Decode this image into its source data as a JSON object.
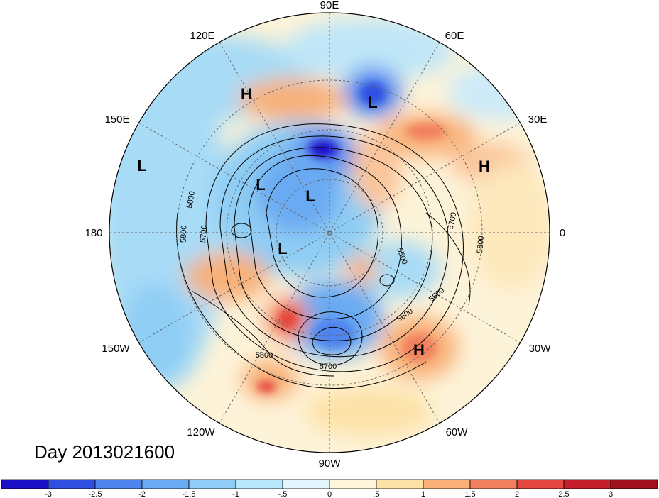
{
  "chart_data": {
    "type": "heatmap",
    "projection": "polar stereographic (northern hemisphere)",
    "date_label": "Day 2013021600",
    "longitude_labels": [
      {
        "label": "90E",
        "lon": 90
      },
      {
        "label": "60E",
        "lon": 60
      },
      {
        "label": "30E",
        "lon": 30
      },
      {
        "label": "0",
        "lon": 0
      },
      {
        "label": "30W",
        "lon": -30
      },
      {
        "label": "60W",
        "lon": -60
      },
      {
        "label": "90W",
        "lon": -90
      },
      {
        "label": "120W",
        "lon": -120
      },
      {
        "label": "150W",
        "lon": -150
      },
      {
        "label": "180",
        "lon": 180
      },
      {
        "label": "150E",
        "lon": 150
      },
      {
        "label": "120E",
        "lon": 120
      }
    ],
    "contour_labels": [
      "5800",
      "5700",
      "5800",
      "5700",
      "5500",
      "5600",
      "5800",
      "5700",
      "5800",
      "5700",
      "5800"
    ],
    "pressure_centers": [
      {
        "label": "H",
        "type": "high"
      },
      {
        "label": "L",
        "type": "low"
      },
      {
        "label": "L",
        "type": "low"
      },
      {
        "label": "L",
        "type": "low"
      },
      {
        "label": "H",
        "type": "high"
      },
      {
        "label": "L",
        "type": "low"
      },
      {
        "label": "L",
        "type": "low"
      },
      {
        "label": "H",
        "type": "high"
      }
    ],
    "colorbar": {
      "ticks": [
        "-3",
        "-2.5",
        "-2",
        "-1.5",
        "-1",
        "-.5",
        "0",
        ".5",
        "1",
        "1.5",
        "2",
        "2.5",
        "3"
      ],
      "colors": [
        "#1a10c8",
        "#2f4fe0",
        "#4f84ee",
        "#6aaaf2",
        "#8fcdf6",
        "#b8e6fa",
        "#e2f5fc",
        "#fff6dc",
        "#fde2a8",
        "#f8b078",
        "#f2805e",
        "#e4453e",
        "#c41f2a",
        "#a0101e"
      ]
    }
  }
}
